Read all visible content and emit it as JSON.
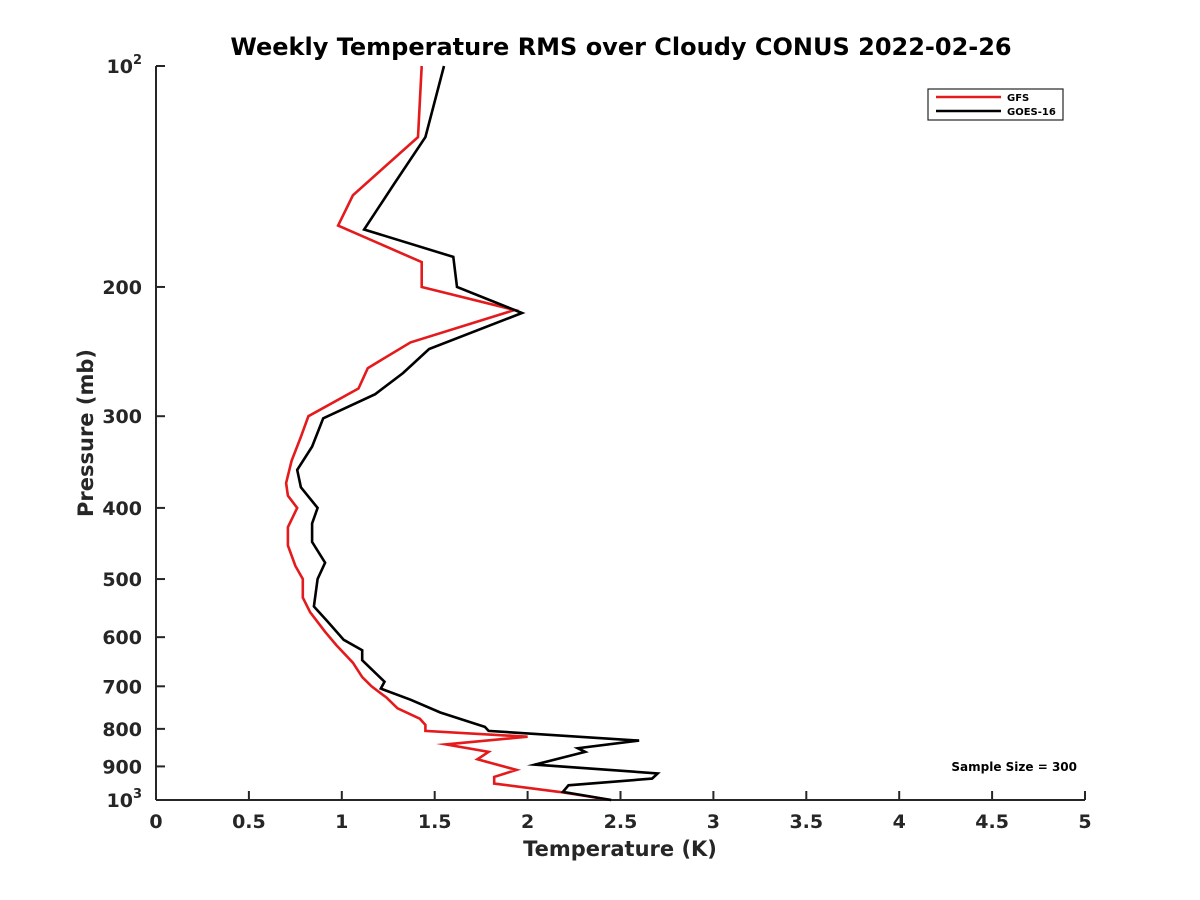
{
  "chart_data": {
    "type": "line",
    "title": "Weekly Temperature RMS over Cloudy CONUS 2022-02-26",
    "xlabel": "Temperature (K)",
    "ylabel": "Pressure (mb)",
    "xlim": [
      0,
      5
    ],
    "ylim": [
      100,
      1000
    ],
    "y_scale": "log",
    "y_reversed": true,
    "grid": false,
    "legend_position": "top-right",
    "x_ticks": [
      "0",
      "0.5",
      "1",
      "1.5",
      "2",
      "2.5",
      "3",
      "3.5",
      "4",
      "4.5",
      "5"
    ],
    "y_ticks": [
      {
        "value": 100,
        "base": "10",
        "exp": "2"
      },
      {
        "value": 200,
        "label": "200"
      },
      {
        "value": 300,
        "label": "300"
      },
      {
        "value": 400,
        "label": "400"
      },
      {
        "value": 500,
        "label": "500"
      },
      {
        "value": 600,
        "label": "600"
      },
      {
        "value": 700,
        "label": "700"
      },
      {
        "value": 800,
        "label": "800"
      },
      {
        "value": 900,
        "label": "900"
      },
      {
        "value": 1000,
        "base": "10",
        "exp": "3"
      }
    ],
    "annotation": "Sample Size = 300",
    "series": [
      {
        "name": "GFS",
        "color": "#e41a1c",
        "points": [
          [
            1.43,
            100
          ],
          [
            1.41,
            125
          ],
          [
            1.06,
            150
          ],
          [
            0.98,
            165
          ],
          [
            1.43,
            185
          ],
          [
            1.43,
            200
          ],
          [
            1.93,
            215
          ],
          [
            1.37,
            238
          ],
          [
            1.14,
            258
          ],
          [
            1.09,
            275
          ],
          [
            0.82,
            300
          ],
          [
            0.78,
            320
          ],
          [
            0.73,
            345
          ],
          [
            0.7,
            370
          ],
          [
            0.71,
            385
          ],
          [
            0.76,
            400
          ],
          [
            0.71,
            425
          ],
          [
            0.71,
            450
          ],
          [
            0.75,
            480
          ],
          [
            0.79,
            500
          ],
          [
            0.79,
            530
          ],
          [
            0.83,
            555
          ],
          [
            0.91,
            590
          ],
          [
            0.97,
            615
          ],
          [
            1.06,
            650
          ],
          [
            1.11,
            680
          ],
          [
            1.16,
            700
          ],
          [
            1.24,
            725
          ],
          [
            1.3,
            750
          ],
          [
            1.42,
            775
          ],
          [
            1.45,
            790
          ],
          [
            1.45,
            805
          ],
          [
            2.0,
            820
          ],
          [
            1.56,
            840
          ],
          [
            1.79,
            860
          ],
          [
            1.73,
            880
          ],
          [
            1.94,
            910
          ],
          [
            1.82,
            930
          ],
          [
            1.82,
            950
          ],
          [
            2.17,
            975
          ],
          [
            2.45,
            1000
          ]
        ]
      },
      {
        "name": "GOES-16",
        "color": "#000000",
        "points": [
          [
            1.55,
            100
          ],
          [
            1.45,
            125
          ],
          [
            1.28,
            145
          ],
          [
            1.12,
            167
          ],
          [
            1.6,
            182
          ],
          [
            1.62,
            200
          ],
          [
            1.97,
            217
          ],
          [
            1.47,
            243
          ],
          [
            1.33,
            262
          ],
          [
            1.18,
            280
          ],
          [
            0.9,
            302
          ],
          [
            0.84,
            330
          ],
          [
            0.76,
            355
          ],
          [
            0.78,
            375
          ],
          [
            0.87,
            400
          ],
          [
            0.84,
            420
          ],
          [
            0.84,
            445
          ],
          [
            0.91,
            475
          ],
          [
            0.87,
            500
          ],
          [
            0.85,
            545
          ],
          [
            0.92,
            570
          ],
          [
            1.01,
            605
          ],
          [
            1.11,
            625
          ],
          [
            1.11,
            645
          ],
          [
            1.23,
            690
          ],
          [
            1.21,
            705
          ],
          [
            1.37,
            730
          ],
          [
            1.53,
            760
          ],
          [
            1.77,
            795
          ],
          [
            1.79,
            805
          ],
          [
            2.6,
            830
          ],
          [
            2.27,
            850
          ],
          [
            2.31,
            860
          ],
          [
            2.04,
            895
          ],
          [
            2.7,
            920
          ],
          [
            2.67,
            935
          ],
          [
            2.22,
            955
          ],
          [
            2.19,
            975
          ],
          [
            2.45,
            1000
          ]
        ]
      }
    ]
  }
}
